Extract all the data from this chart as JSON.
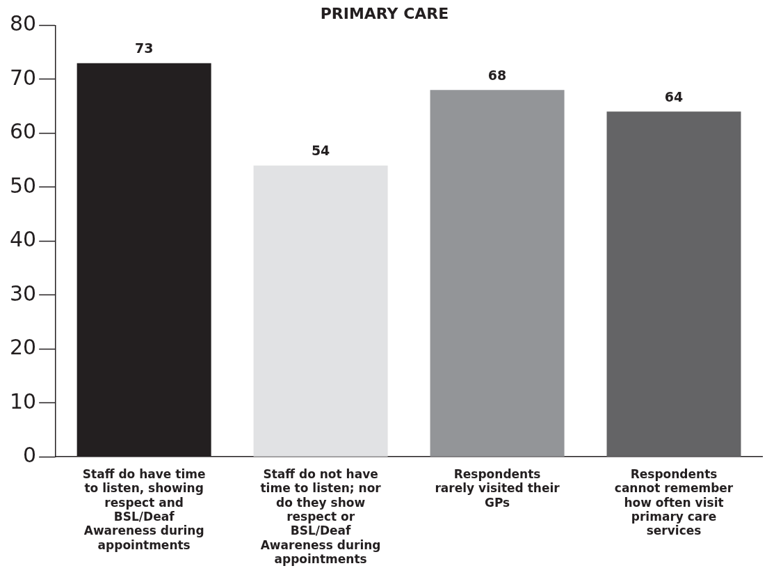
{
  "chart_data": {
    "type": "bar",
    "title": "PRIMARY CARE",
    "categories": [
      "Staff do have time to listen, showing respect and BSL/Deaf Awareness during appointments",
      "Staff do not have time to listen; nor do they show respect or BSL/Deaf Awareness during appointments",
      "Respondents rarely visited their GPs",
      "Respondents cannot remember how often visit primary care services"
    ],
    "values": [
      73,
      54,
      68,
      64
    ],
    "colors": [
      "#231f20",
      "#e1e2e4",
      "#939598",
      "#646466"
    ],
    "ylim": [
      0,
      80
    ],
    "yticks": [
      0,
      10,
      20,
      30,
      40,
      50,
      60,
      70,
      80
    ],
    "grid": false,
    "legend": false,
    "data_labels": true
  }
}
